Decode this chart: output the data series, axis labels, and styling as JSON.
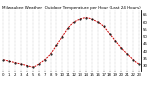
{
  "title": "Milwaukee Weather  Outdoor Temperature per Hour (Last 24 Hours)",
  "hours": [
    0,
    1,
    2,
    3,
    4,
    5,
    6,
    7,
    8,
    9,
    10,
    11,
    12,
    13,
    14,
    15,
    16,
    17,
    18,
    19,
    20,
    21,
    22,
    23
  ],
  "temps": [
    34,
    33,
    32,
    31,
    30,
    29,
    31,
    34,
    38,
    44,
    50,
    56,
    60,
    62,
    63,
    62,
    60,
    57,
    52,
    47,
    42,
    38,
    34,
    31
  ],
  "line_color": "#cc0000",
  "marker_color": "#000000",
  "bg_color": "#ffffff",
  "grid_color": "#999999",
  "ylim_min": 26,
  "ylim_max": 68,
  "title_fontsize": 3.0,
  "tick_fontsize": 2.8,
  "yticks": [
    30,
    35,
    40,
    45,
    50,
    55,
    60,
    65
  ]
}
